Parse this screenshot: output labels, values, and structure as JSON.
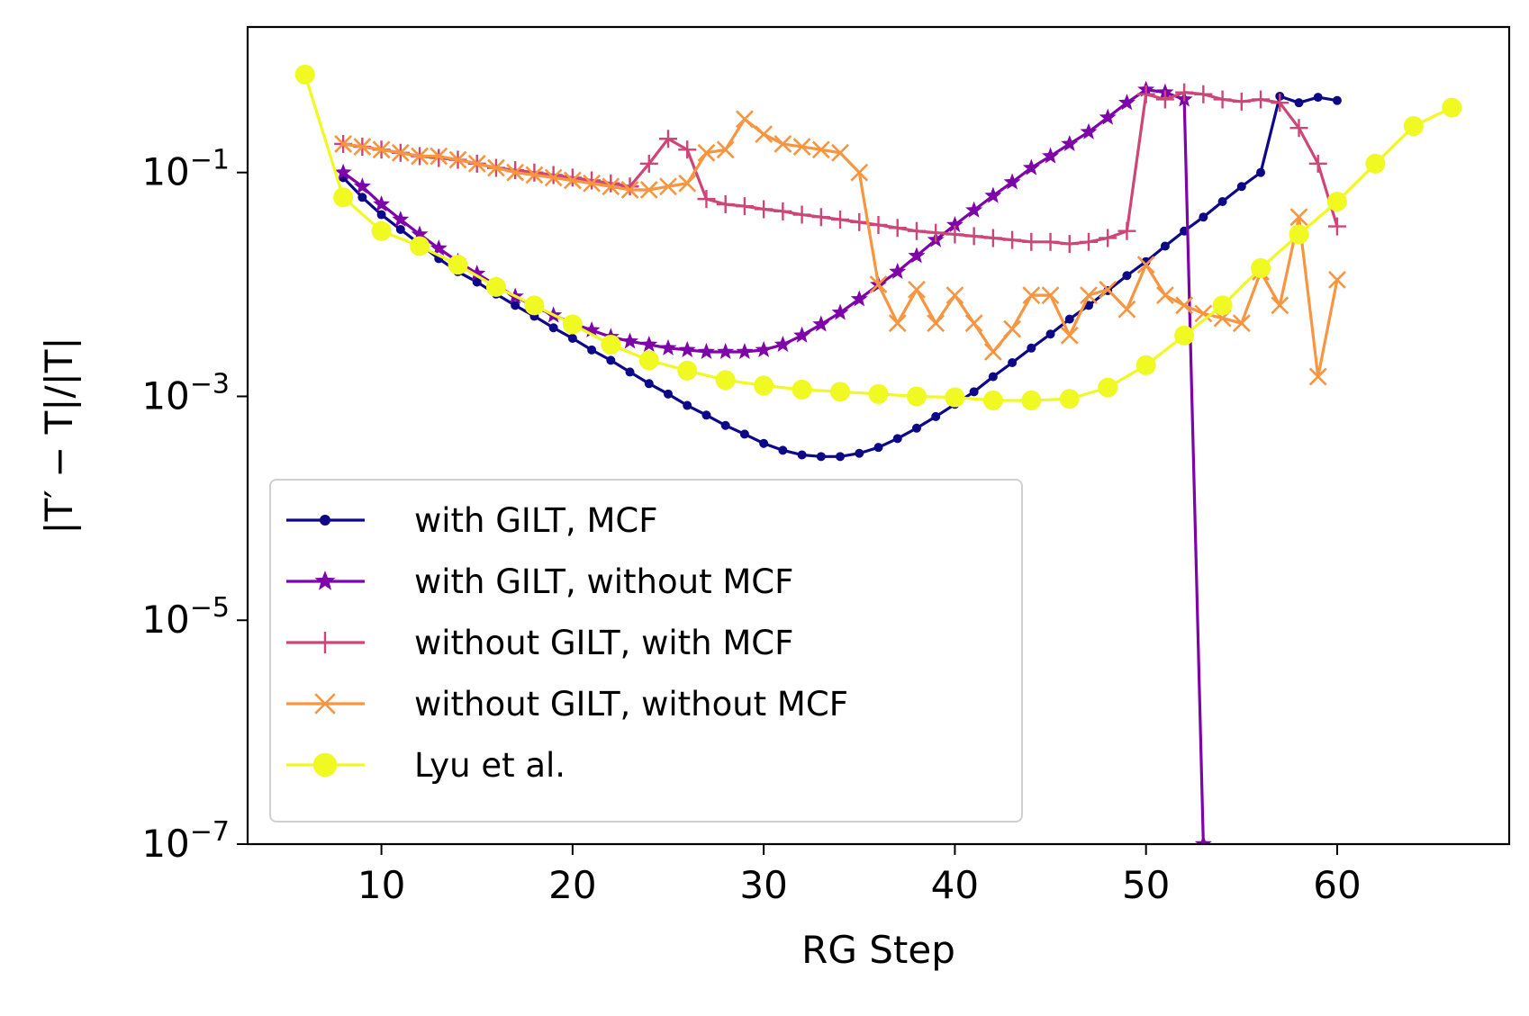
{
  "chart_data": {
    "type": "line",
    "title": "",
    "xlabel": "RG Step",
    "ylabel": "|T′ − T|/|T|",
    "yscale": "log",
    "xlim": [
      3,
      69
    ],
    "ylim_exponents": [
      -7,
      0.3
    ],
    "xticks": [
      10,
      20,
      30,
      40,
      50,
      60
    ],
    "xtick_labels": [
      "10",
      "20",
      "30",
      "40",
      "50",
      "60"
    ],
    "yticks": [
      -1,
      -3,
      -5,
      -7
    ],
    "ytick_labels": [
      {
        "base": "10",
        "exp": "−1"
      },
      {
        "base": "10",
        "exp": "−3"
      },
      {
        "base": "10",
        "exp": "−5"
      },
      {
        "base": "10",
        "exp": "−7"
      }
    ],
    "grid": false,
    "legend_position": "lower-left",
    "series": [
      {
        "name": "with GILT, MCF",
        "color": "#0d0887",
        "marker": "dot",
        "x": [
          8,
          9,
          10,
          11,
          12,
          13,
          14,
          15,
          16,
          17,
          18,
          19,
          20,
          21,
          22,
          23,
          24,
          25,
          26,
          27,
          28,
          29,
          30,
          31,
          32,
          33,
          34,
          35,
          36,
          37,
          38,
          39,
          40,
          41,
          42,
          43,
          44,
          45,
          46,
          47,
          48,
          49,
          50,
          51,
          52,
          53,
          54,
          55,
          56,
          57,
          58,
          59,
          60
        ],
        "y": [
          0.09,
          0.06,
          0.042,
          0.031,
          0.023,
          0.017,
          0.013,
          0.0105,
          0.0082,
          0.0065,
          0.0052,
          0.0041,
          0.0033,
          0.0026,
          0.0021,
          0.00165,
          0.0013,
          0.00105,
          0.00083,
          0.00068,
          0.00055,
          0.00046,
          0.00038,
          0.00033,
          0.0003,
          0.00029,
          0.00029,
          0.00031,
          0.00035,
          0.00042,
          0.00052,
          0.00066,
          0.00085,
          0.0011,
          0.0015,
          0.002,
          0.0027,
          0.0036,
          0.0049,
          0.0065,
          0.0088,
          0.012,
          0.016,
          0.022,
          0.03,
          0.04,
          0.055,
          0.075,
          0.1,
          0.48,
          0.42,
          0.47,
          0.44
        ]
      },
      {
        "name": "with GILT, without MCF",
        "color": "#7e03a8",
        "marker": "star",
        "x": [
          8,
          9,
          10,
          11,
          12,
          13,
          14,
          15,
          16,
          17,
          18,
          19,
          20,
          21,
          22,
          23,
          24,
          25,
          26,
          27,
          28,
          29,
          30,
          31,
          32,
          33,
          34,
          35,
          36,
          37,
          38,
          39,
          40,
          41,
          42,
          43,
          44,
          45,
          46,
          47,
          48,
          49,
          50,
          51,
          52,
          53
        ],
        "y": [
          0.1,
          0.075,
          0.052,
          0.038,
          0.028,
          0.021,
          0.016,
          0.0125,
          0.0098,
          0.0078,
          0.0064,
          0.0053,
          0.0045,
          0.0039,
          0.0034,
          0.0031,
          0.0029,
          0.0027,
          0.0026,
          0.0025,
          0.0025,
          0.0025,
          0.0026,
          0.0029,
          0.0035,
          0.0044,
          0.0056,
          0.0074,
          0.0099,
          0.013,
          0.018,
          0.025,
          0.034,
          0.046,
          0.062,
          0.082,
          0.11,
          0.14,
          0.18,
          0.23,
          0.31,
          0.42,
          0.55,
          0.52,
          0.45,
          1e-07
        ]
      },
      {
        "name": "without GILT, with MCF",
        "color": "#cc4778",
        "marker": "plus",
        "x": [
          8,
          9,
          10,
          11,
          12,
          13,
          14,
          15,
          16,
          17,
          18,
          19,
          20,
          21,
          22,
          23,
          24,
          25,
          26,
          27,
          28,
          29,
          30,
          31,
          32,
          33,
          34,
          35,
          36,
          37,
          38,
          39,
          40,
          41,
          42,
          43,
          44,
          45,
          46,
          47,
          48,
          49,
          50,
          51,
          52,
          53,
          54,
          55,
          56,
          57,
          58,
          59,
          60
        ],
        "y": [
          0.18,
          0.17,
          0.16,
          0.15,
          0.14,
          0.135,
          0.13,
          0.12,
          0.11,
          0.105,
          0.1,
          0.095,
          0.09,
          0.085,
          0.08,
          0.075,
          0.12,
          0.2,
          0.16,
          0.058,
          0.052,
          0.05,
          0.047,
          0.045,
          0.042,
          0.04,
          0.038,
          0.036,
          0.034,
          0.032,
          0.03,
          0.029,
          0.028,
          0.027,
          0.026,
          0.025,
          0.024,
          0.024,
          0.023,
          0.024,
          0.026,
          0.03,
          0.5,
          0.45,
          0.52,
          0.5,
          0.45,
          0.43,
          0.45,
          0.42,
          0.25,
          0.12,
          0.033
        ]
      },
      {
        "name": "without GILT, without MCF",
        "color": "#f89540",
        "marker": "x",
        "x": [
          8,
          9,
          10,
          11,
          12,
          13,
          14,
          15,
          16,
          17,
          18,
          19,
          20,
          21,
          22,
          23,
          24,
          25,
          26,
          27,
          28,
          29,
          30,
          31,
          32,
          33,
          34,
          35,
          36,
          37,
          38,
          39,
          40,
          41,
          42,
          43,
          44,
          45,
          46,
          47,
          48,
          49,
          50,
          51,
          52,
          53,
          54,
          55,
          56,
          57,
          58,
          59,
          60
        ],
        "y": [
          0.18,
          0.17,
          0.16,
          0.15,
          0.14,
          0.14,
          0.13,
          0.12,
          0.11,
          0.1,
          0.095,
          0.09,
          0.085,
          0.08,
          0.075,
          0.07,
          0.07,
          0.075,
          0.08,
          0.15,
          0.16,
          0.3,
          0.22,
          0.18,
          0.17,
          0.16,
          0.15,
          0.1,
          0.01,
          0.0045,
          0.009,
          0.0045,
          0.008,
          0.0045,
          0.0025,
          0.004,
          0.008,
          0.008,
          0.0035,
          0.008,
          0.009,
          0.006,
          0.015,
          0.008,
          0.0065,
          0.0055,
          0.005,
          0.0045,
          0.013,
          0.0065,
          0.04,
          0.0015,
          0.011
        ]
      },
      {
        "name": "Lyu et al.",
        "color": "#f0f921",
        "marker": "circle",
        "x": [
          6,
          8,
          10,
          12,
          14,
          16,
          18,
          20,
          22,
          24,
          26,
          28,
          30,
          32,
          34,
          36,
          38,
          40,
          42,
          44,
          46,
          48,
          50,
          52,
          54,
          56,
          58,
          60,
          62,
          64,
          66
        ],
        "y": [
          0.75,
          0.06,
          0.03,
          0.022,
          0.015,
          0.0095,
          0.0065,
          0.0044,
          0.0029,
          0.0021,
          0.0017,
          0.0014,
          0.00125,
          0.00115,
          0.0011,
          0.00105,
          0.001,
          0.00098,
          0.00092,
          0.00092,
          0.00095,
          0.0012,
          0.0019,
          0.0035,
          0.0065,
          0.014,
          0.028,
          0.055,
          0.12,
          0.26,
          0.38
        ]
      }
    ]
  }
}
